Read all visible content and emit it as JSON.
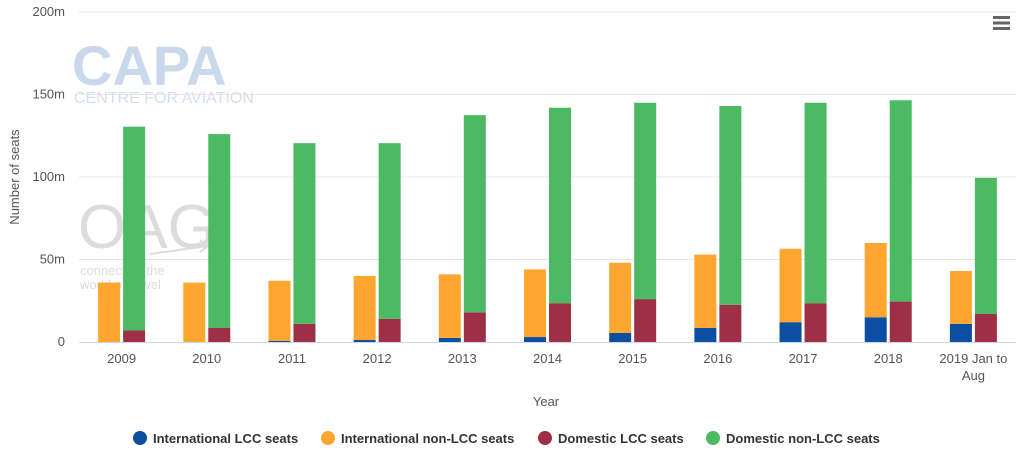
{
  "menu": {
    "icon": "hamburger-menu-icon"
  },
  "watermarks": {
    "capa_name": "CAPA",
    "capa_tagline": "CENTRE FOR AVIATION",
    "oag_name": "OAG",
    "oag_tagline_1": "connecting the",
    "oag_tagline_2": "world of travel"
  },
  "colors": {
    "International LCC seats": "#0b4ea2",
    "International non-LCC seats": "#ffa630",
    "Domestic LCC seats": "#9e2f46",
    "Domestic non-LCC seats": "#4cb963",
    "grid": "#e6e6e6",
    "text": "#555555"
  },
  "chart_data": {
    "type": "bar",
    "stacking": "grouped-stacked",
    "title": "",
    "xlabel": "Year",
    "ylabel": "Number of seats",
    "ylim": [
      0,
      200000000
    ],
    "yticks": [
      0,
      50000000,
      100000000,
      150000000,
      200000000
    ],
    "ytick_labels": [
      "0",
      "50m",
      "100m",
      "150m",
      "200m"
    ],
    "grid": true,
    "legend_position": "bottom-center",
    "categories": [
      "2009",
      "2010",
      "2011",
      "2012",
      "2013",
      "2014",
      "2015",
      "2016",
      "2017",
      "2018",
      "2019 Jan to Aug"
    ],
    "series": [
      {
        "name": "International LCC seats",
        "stack": "international",
        "values": [
          0,
          0,
          600000,
          1200000,
          2500000,
          3000000,
          5500000,
          8500000,
          12000000,
          15000000,
          11000000
        ]
      },
      {
        "name": "International non-LCC seats",
        "stack": "international",
        "values": [
          36000000,
          36000000,
          36500000,
          38800000,
          38500000,
          41000000,
          42500000,
          44500000,
          44500000,
          45000000,
          32000000
        ]
      },
      {
        "name": "Domestic LCC seats",
        "stack": "domestic",
        "values": [
          7000000,
          8500000,
          11000000,
          14000000,
          18000000,
          23500000,
          26000000,
          22500000,
          23500000,
          24500000,
          17000000
        ]
      },
      {
        "name": "Domestic non-LCC seats",
        "stack": "domestic",
        "values": [
          123500000,
          117500000,
          109500000,
          106500000,
          119500000,
          118500000,
          119000000,
          120500000,
          121500000,
          122000000,
          82500000
        ]
      }
    ]
  }
}
